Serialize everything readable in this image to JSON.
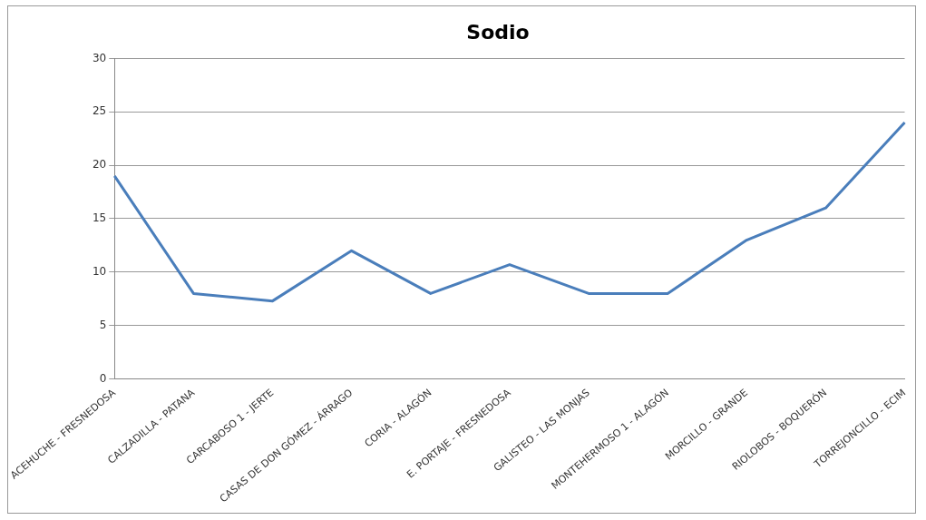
{
  "chart_data": {
    "type": "line",
    "title": "Sodio",
    "categories": [
      "ACEHUCHE - FRESNEDOSA",
      "CALZADILLA - PATANA",
      "CARCABOSO 1 - JERTE",
      "CASAS DE DON GÓMEZ - ÁRRAGO",
      "CORIA - ALAGÓN",
      "E. PORTAJE - FRESNEDOSA",
      "GALISTEO - LAS MONJAS",
      "MONTEHERMOSO 1 - ALAGÓN",
      "MORCILLO - GRANDE",
      "RIOLOBOS - BOQUERÓN",
      "TORREJONCILLO - ECIM"
    ],
    "series": [
      {
        "color": "#4a7ebb",
        "values": [
          19,
          8,
          7.3,
          12,
          8,
          10.7,
          8,
          8,
          13,
          16,
          24
        ]
      }
    ],
    "ylim": [
      0,
      30
    ],
    "yticks": [
      0,
      5,
      10,
      15,
      20,
      25,
      30
    ],
    "grid": "y",
    "marker": "none",
    "line_style": "solid"
  }
}
